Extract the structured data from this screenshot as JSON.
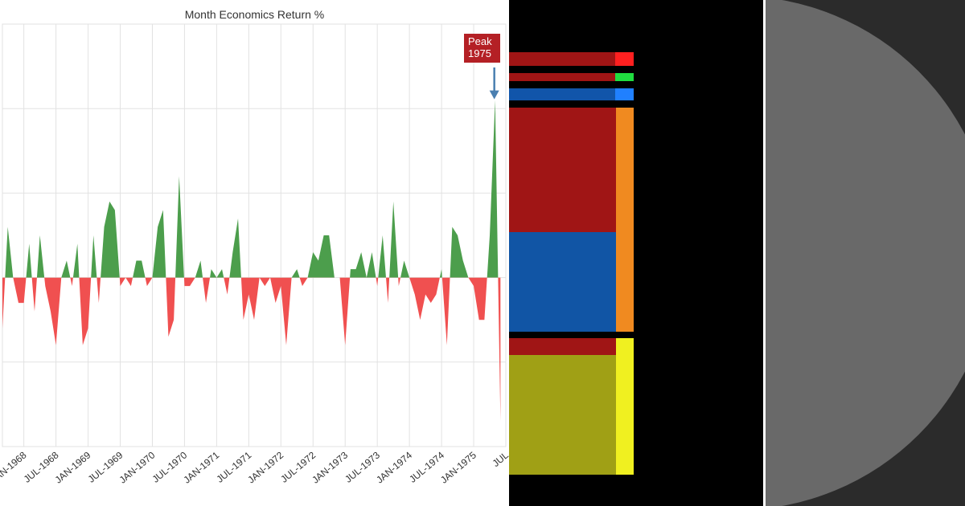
{
  "colors": {
    "positive": "#4c9e4c",
    "negative": "#f05050",
    "grid": "#e2e2e2",
    "axis_text": "#333333",
    "annotation_bg": "#b42025",
    "annotation_arrow": "#4a7fb0"
  },
  "chart_data": {
    "type": "area",
    "title": "Month Economics Return %",
    "xlabel": "",
    "ylabel": "",
    "x_range": [
      "1967-09",
      "1975-07"
    ],
    "ylim": [
      -20,
      30
    ],
    "grid": true,
    "legend": "none",
    "tick_labels": [
      "JAN-1968",
      "JUL-1968",
      "JAN-1969",
      "JUL-1969",
      "JAN-1970",
      "JUL-1970",
      "JAN-1971",
      "JUL-1971",
      "JAN-1972",
      "JUL-1972",
      "JAN-1973",
      "JUL-1973",
      "JAN-1974",
      "JUL-1974",
      "JAN-1975",
      "JUL"
    ],
    "series": [
      {
        "values": [
          {
            "x": "1967-09",
            "y": -6
          },
          {
            "x": "1967-10",
            "y": 6
          },
          {
            "x": "1967-11",
            "y": 0
          },
          {
            "x": "1967-12",
            "y": -3
          },
          {
            "x": "1968-01",
            "y": -3
          },
          {
            "x": "1968-02",
            "y": 4
          },
          {
            "x": "1968-03",
            "y": -4
          },
          {
            "x": "1968-04",
            "y": 5
          },
          {
            "x": "1968-05",
            "y": -1
          },
          {
            "x": "1968-06",
            "y": -4
          },
          {
            "x": "1968-07",
            "y": -8
          },
          {
            "x": "1968-08",
            "y": 0
          },
          {
            "x": "1968-09",
            "y": 2
          },
          {
            "x": "1968-10",
            "y": -1
          },
          {
            "x": "1968-11",
            "y": 4
          },
          {
            "x": "1968-12",
            "y": -8
          },
          {
            "x": "1969-01",
            "y": -6
          },
          {
            "x": "1969-02",
            "y": 5
          },
          {
            "x": "1969-03",
            "y": -3
          },
          {
            "x": "1969-04",
            "y": 6
          },
          {
            "x": "1969-05",
            "y": 9
          },
          {
            "x": "1969-06",
            "y": 8
          },
          {
            "x": "1969-07",
            "y": -1
          },
          {
            "x": "1969-08",
            "y": 0
          },
          {
            "x": "1969-09",
            "y": -1
          },
          {
            "x": "1969-10",
            "y": 2
          },
          {
            "x": "1969-11",
            "y": 2
          },
          {
            "x": "1969-12",
            "y": -1
          },
          {
            "x": "1970-01",
            "y": 0
          },
          {
            "x": "1970-02",
            "y": 6
          },
          {
            "x": "1970-03",
            "y": 8
          },
          {
            "x": "1970-04",
            "y": -7
          },
          {
            "x": "1970-05",
            "y": -5
          },
          {
            "x": "1970-06",
            "y": 12
          },
          {
            "x": "1970-07",
            "y": -1
          },
          {
            "x": "1970-08",
            "y": -1
          },
          {
            "x": "1970-09",
            "y": 0
          },
          {
            "x": "1970-10",
            "y": 2
          },
          {
            "x": "1970-11",
            "y": -3
          },
          {
            "x": "1970-12",
            "y": 1
          },
          {
            "x": "1971-01",
            "y": 0
          },
          {
            "x": "1971-02",
            "y": 1
          },
          {
            "x": "1971-03",
            "y": -2
          },
          {
            "x": "1971-04",
            "y": 3
          },
          {
            "x": "1971-05",
            "y": 7
          },
          {
            "x": "1971-06",
            "y": -5
          },
          {
            "x": "1971-07",
            "y": -2
          },
          {
            "x": "1971-08",
            "y": -5
          },
          {
            "x": "1971-09",
            "y": 0
          },
          {
            "x": "1971-10",
            "y": -1
          },
          {
            "x": "1971-11",
            "y": 0
          },
          {
            "x": "1971-12",
            "y": -3
          },
          {
            "x": "1972-01",
            "y": -1
          },
          {
            "x": "1972-02",
            "y": -8
          },
          {
            "x": "1972-03",
            "y": 0
          },
          {
            "x": "1972-04",
            "y": 1
          },
          {
            "x": "1972-05",
            "y": -1
          },
          {
            "x": "1972-06",
            "y": 0
          },
          {
            "x": "1972-07",
            "y": 3
          },
          {
            "x": "1972-08",
            "y": 2
          },
          {
            "x": "1972-09",
            "y": 5
          },
          {
            "x": "1972-10",
            "y": 5
          },
          {
            "x": "1972-11",
            "y": 0
          },
          {
            "x": "1972-12",
            "y": 0
          },
          {
            "x": "1973-01",
            "y": -8
          },
          {
            "x": "1973-02",
            "y": 1
          },
          {
            "x": "1973-03",
            "y": 1
          },
          {
            "x": "1973-04",
            "y": 3
          },
          {
            "x": "1973-05",
            "y": 0
          },
          {
            "x": "1973-06",
            "y": 3
          },
          {
            "x": "1973-07",
            "y": -1
          },
          {
            "x": "1973-08",
            "y": 5
          },
          {
            "x": "1973-09",
            "y": -3
          },
          {
            "x": "1973-10",
            "y": 9
          },
          {
            "x": "1973-11",
            "y": -1
          },
          {
            "x": "1973-12",
            "y": 2
          },
          {
            "x": "1974-01",
            "y": 0
          },
          {
            "x": "1974-02",
            "y": -2
          },
          {
            "x": "1974-03",
            "y": -5
          },
          {
            "x": "1974-04",
            "y": -2
          },
          {
            "x": "1974-05",
            "y": -3
          },
          {
            "x": "1974-06",
            "y": -2
          },
          {
            "x": "1974-07",
            "y": 1
          },
          {
            "x": "1974-08",
            "y": -8
          },
          {
            "x": "1974-09",
            "y": 6
          },
          {
            "x": "1974-10",
            "y": 5
          },
          {
            "x": "1974-11",
            "y": 2
          },
          {
            "x": "1974-12",
            "y": 0
          },
          {
            "x": "1975-01",
            "y": -1
          },
          {
            "x": "1975-02",
            "y": -5
          },
          {
            "x": "1975-03",
            "y": -5
          },
          {
            "x": "1975-04",
            "y": 5
          },
          {
            "x": "1975-05",
            "y": 21
          },
          {
            "x": "1975-06",
            "y": -17
          }
        ]
      }
    ],
    "annotations": [
      {
        "text": "Peak\n1975",
        "x": "1975-05"
      }
    ]
  },
  "mosaic": {
    "tiles": [
      {
        "name": "tile-red-top",
        "color": "#a01515"
      },
      {
        "name": "tile-red-top-cap",
        "color": "#ff2020"
      },
      {
        "name": "tile-red-thin",
        "color": "#a01515"
      },
      {
        "name": "tile-green-cap",
        "color": "#20dd40"
      },
      {
        "name": "tile-blue-thin",
        "color": "#1155aa"
      },
      {
        "name": "tile-blue-cap",
        "color": "#2080ff"
      },
      {
        "name": "tile-red-large",
        "color": "#a01515"
      },
      {
        "name": "tile-blue-large",
        "color": "#1155a5"
      },
      {
        "name": "tile-orange-strip",
        "color": "#f08a20"
      },
      {
        "name": "tile-red-band",
        "color": "#a01515"
      },
      {
        "name": "tile-olive-block",
        "color": "#a0a015"
      },
      {
        "name": "tile-yellow-strip",
        "color": "#f0f020"
      }
    ]
  },
  "disc": {
    "background": "#2b2b2b",
    "fill": "#696969"
  }
}
